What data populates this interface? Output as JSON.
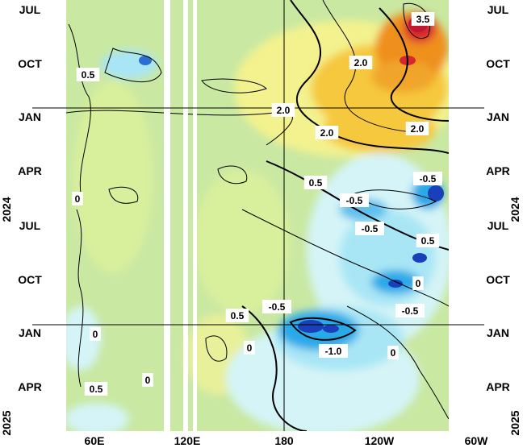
{
  "chart_data": {
    "type": "heatmap",
    "title": "",
    "x_ticks": [
      "60E",
      "120E",
      "180",
      "120W",
      "60W"
    ],
    "y_ticks_left": [
      "JUL",
      "OCT",
      "JAN",
      "APR",
      "JUL",
      "OCT",
      "JAN",
      "APR"
    ],
    "y_ticks_right": [
      "JUL",
      "OCT",
      "JAN",
      "APR",
      "JUL",
      "OCT",
      "JAN",
      "APR"
    ],
    "year_labels": [
      "2024",
      "2025"
    ],
    "contour_labels": [
      "3.5",
      "2.0",
      "0.5",
      "2.0",
      "2.0",
      "2.0",
      "0.5",
      "-0.5",
      "0",
      "-0.5",
      "-0.5",
      "0.5",
      "0",
      "0.5",
      "-0.5",
      "-0.5",
      "0",
      "-1.0",
      "0",
      "0",
      "0.5",
      "0"
    ],
    "colors": {
      "neg_strong": "#1a3fb8",
      "neg_mid": "#2aa9e8",
      "neg_light": "#a8e6f5",
      "neg_faint": "#d4f4f7",
      "neutral": "#c3e6a0",
      "neutral_alt": "#d8ef9c",
      "pos_light": "#f3f28e",
      "pos_mid": "#f6c83c",
      "pos_strong": "#ef8f1c",
      "pos_max": "#d7262e"
    }
  }
}
